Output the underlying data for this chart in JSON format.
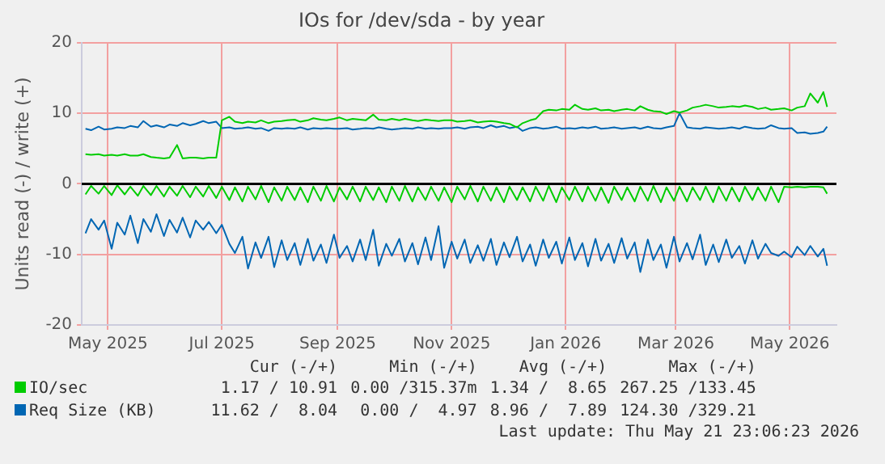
{
  "chart_data": {
    "type": "line",
    "title": "IOs for /dev/sda - by year",
    "ylabel": "Units read (-) / write (+)",
    "x": [
      "2025-04-19",
      "2025-04-22",
      "2025-04-26",
      "2025-04-29",
      "2025-05-03",
      "2025-05-06",
      "2025-05-10",
      "2025-05-13",
      "2025-05-17",
      "2025-05-20",
      "2025-05-24",
      "2025-05-27",
      "2025-05-31",
      "2025-06-03",
      "2025-06-07",
      "2025-06-10",
      "2025-06-14",
      "2025-06-17",
      "2025-06-21",
      "2025-06-24",
      "2025-06-28",
      "2025-07-01",
      "2025-07-05",
      "2025-07-08",
      "2025-07-12",
      "2025-07-15",
      "2025-07-19",
      "2025-07-22",
      "2025-07-26",
      "2025-07-29",
      "2025-08-02",
      "2025-08-05",
      "2025-08-09",
      "2025-08-12",
      "2025-08-16",
      "2025-08-19",
      "2025-08-23",
      "2025-08-26",
      "2025-08-30",
      "2025-09-02",
      "2025-09-06",
      "2025-09-09",
      "2025-09-13",
      "2025-09-16",
      "2025-09-20",
      "2025-09-23",
      "2025-09-27",
      "2025-09-30",
      "2025-10-04",
      "2025-10-07",
      "2025-10-11",
      "2025-10-14",
      "2025-10-18",
      "2025-10-21",
      "2025-10-25",
      "2025-10-28",
      "2025-11-01",
      "2025-11-04",
      "2025-11-08",
      "2025-11-11",
      "2025-11-15",
      "2025-11-18",
      "2025-11-22",
      "2025-11-25",
      "2025-11-29",
      "2025-12-02",
      "2025-12-06",
      "2025-12-09",
      "2025-12-13",
      "2025-12-16",
      "2025-12-20",
      "2025-12-23",
      "2025-12-27",
      "2025-12-30",
      "2026-01-03",
      "2026-01-06",
      "2026-01-10",
      "2026-01-13",
      "2026-01-17",
      "2026-01-20",
      "2026-01-24",
      "2026-01-27",
      "2026-01-31",
      "2026-02-03",
      "2026-02-07",
      "2026-02-10",
      "2026-02-14",
      "2026-02-17",
      "2026-02-21",
      "2026-02-24",
      "2026-02-28",
      "2026-03-03",
      "2026-03-07",
      "2026-03-10",
      "2026-03-14",
      "2026-03-17",
      "2026-03-21",
      "2026-03-24",
      "2026-03-28",
      "2026-03-31",
      "2026-04-04",
      "2026-04-07",
      "2026-04-11",
      "2026-04-14",
      "2026-04-18",
      "2026-04-21",
      "2026-04-25",
      "2026-04-28",
      "2026-05-02",
      "2026-05-05",
      "2026-05-09",
      "2026-05-12",
      "2026-05-16",
      "2026-05-19",
      "2026-05-21"
    ],
    "series": [
      {
        "name": "IO/sec",
        "color": "#00cc00",
        "values": [
          4.2,
          4.1,
          4.2,
          4.0,
          4.1,
          4.0,
          4.2,
          4.0,
          4.0,
          4.2,
          3.8,
          3.7,
          3.6,
          3.7,
          5.5,
          3.6,
          3.7,
          3.7,
          3.6,
          3.7,
          3.7,
          9.0,
          9.5,
          8.8,
          8.6,
          8.8,
          8.7,
          9.0,
          8.6,
          8.8,
          8.9,
          9.0,
          9.1,
          8.8,
          9.0,
          9.3,
          9.1,
          9.0,
          9.2,
          9.4,
          9.0,
          9.2,
          9.1,
          9.0,
          9.8,
          9.1,
          9.0,
          9.2,
          9.0,
          9.2,
          9.0,
          8.9,
          9.1,
          9.0,
          8.9,
          9.0,
          9.0,
          8.8,
          8.9,
          9.0,
          8.7,
          8.8,
          8.9,
          8.8,
          8.6,
          8.5,
          8.0,
          8.6,
          9.0,
          9.2,
          10.3,
          10.5,
          10.4,
          10.6,
          10.5,
          11.2,
          10.6,
          10.5,
          10.7,
          10.4,
          10.5,
          10.3,
          10.5,
          10.6,
          10.4,
          11.0,
          10.5,
          10.3,
          10.2,
          9.9,
          10.3,
          10.1,
          10.4,
          10.8,
          11.0,
          11.2,
          11.0,
          10.8,
          10.9,
          11.0,
          10.9,
          11.1,
          10.9,
          10.6,
          10.8,
          10.5,
          10.6,
          10.7,
          10.4,
          10.8,
          11.0,
          12.8,
          11.5,
          13.0,
          10.9
        ]
      },
      {
        "name": "Req Size (KB)",
        "color": "#0066b3",
        "values": [
          7.8,
          7.6,
          8.1,
          7.7,
          7.8,
          8.0,
          7.9,
          8.2,
          8.0,
          8.9,
          8.1,
          8.3,
          8.0,
          8.4,
          8.2,
          8.6,
          8.3,
          8.5,
          8.9,
          8.6,
          8.8,
          7.9,
          8.0,
          7.8,
          7.9,
          8.0,
          7.8,
          7.9,
          7.5,
          7.9,
          7.8,
          7.9,
          7.8,
          8.0,
          7.7,
          7.9,
          7.8,
          7.9,
          7.8,
          7.8,
          7.9,
          7.7,
          7.8,
          7.9,
          7.8,
          8.0,
          7.8,
          7.7,
          7.8,
          7.9,
          7.8,
          8.0,
          7.8,
          7.9,
          7.8,
          7.9,
          7.9,
          8.0,
          7.8,
          8.0,
          8.1,
          7.9,
          8.3,
          8.0,
          8.2,
          7.9,
          8.1,
          7.5,
          7.9,
          8.0,
          7.8,
          7.9,
          8.1,
          7.8,
          7.9,
          7.8,
          8.0,
          7.9,
          8.1,
          7.8,
          7.9,
          8.0,
          7.8,
          7.9,
          8.0,
          7.8,
          8.1,
          7.9,
          7.8,
          8.0,
          8.2,
          10.0,
          8.0,
          7.9,
          7.8,
          8.0,
          7.9,
          7.8,
          7.9,
          8.0,
          7.8,
          8.1,
          7.9,
          7.8,
          7.9,
          8.3,
          7.9,
          7.8,
          7.9,
          7.2,
          7.3,
          7.1,
          7.2,
          7.4,
          8.1
        ]
      },
      {
        "color": "#00cc00",
        "values": [
          -1.5,
          -0.3,
          -1.4,
          -0.3,
          -1.6,
          -0.2,
          -1.5,
          -0.4,
          -1.7,
          -0.3,
          -1.6,
          -0.3,
          -1.8,
          -0.4,
          -1.7,
          -0.3,
          -1.9,
          -0.4,
          -1.8,
          -0.3,
          -2.0,
          -0.4,
          -2.3,
          -0.5,
          -2.5,
          -0.4,
          -2.2,
          -0.3,
          -2.6,
          -0.5,
          -2.4,
          -0.4,
          -2.3,
          -0.5,
          -2.6,
          -0.4,
          -2.4,
          -0.3,
          -2.5,
          -0.5,
          -2.2,
          -0.4,
          -2.5,
          -0.4,
          -2.3,
          -0.5,
          -2.6,
          -0.4,
          -2.4,
          -0.3,
          -2.5,
          -0.5,
          -2.3,
          -0.4,
          -2.4,
          -0.5,
          -2.6,
          -0.4,
          -2.2,
          -0.3,
          -2.5,
          -0.4,
          -2.4,
          -0.5,
          -2.6,
          -0.4,
          -2.3,
          -0.5,
          -2.5,
          -0.4,
          -2.4,
          -0.3,
          -2.6,
          -0.5,
          -2.3,
          -0.4,
          -2.5,
          -0.4,
          -2.4,
          -0.5,
          -2.7,
          -0.4,
          -2.3,
          -0.5,
          -2.5,
          -0.4,
          -2.4,
          -0.3,
          -2.6,
          -0.5,
          -2.4,
          -0.4,
          -2.5,
          -0.5,
          -2.3,
          -0.4,
          -2.6,
          -0.4,
          -2.4,
          -0.5,
          -2.5,
          -0.4,
          -2.3,
          -0.5,
          -2.4,
          -0.4,
          -2.6,
          -0.4,
          -0.5,
          -0.4,
          -0.5,
          -0.4,
          -0.4,
          -0.5,
          -1.4
        ]
      },
      {
        "color": "#0066b3",
        "values": [
          -7.0,
          -5.0,
          -6.5,
          -5.2,
          -9.2,
          -5.5,
          -7.2,
          -4.5,
          -8.4,
          -5.0,
          -6.8,
          -4.3,
          -7.4,
          -5.1,
          -6.9,
          -4.8,
          -7.6,
          -5.2,
          -6.5,
          -5.4,
          -7.0,
          -5.8,
          -8.5,
          -9.8,
          -7.5,
          -12.0,
          -8.3,
          -10.5,
          -7.5,
          -11.8,
          -8.0,
          -10.8,
          -8.4,
          -11.5,
          -7.8,
          -10.9,
          -8.6,
          -11.2,
          -7.2,
          -10.5,
          -8.8,
          -11.0,
          -7.9,
          -10.8,
          -6.5,
          -11.6,
          -8.5,
          -10.2,
          -7.8,
          -11.0,
          -8.4,
          -11.4,
          -7.6,
          -10.8,
          -6.0,
          -11.9,
          -8.2,
          -10.6,
          -7.9,
          -11.2,
          -8.7,
          -10.9,
          -7.8,
          -11.5,
          -8.3,
          -10.4,
          -7.5,
          -11.0,
          -8.6,
          -11.6,
          -7.9,
          -10.5,
          -8.2,
          -11.3,
          -7.6,
          -10.8,
          -8.4,
          -11.7,
          -7.8,
          -10.9,
          -8.5,
          -11.2,
          -7.7,
          -10.6,
          -8.3,
          -12.5,
          -7.9,
          -10.8,
          -8.6,
          -11.9,
          -7.5,
          -11.0,
          -8.4,
          -10.7,
          -7.2,
          -11.5,
          -8.6,
          -11.1,
          -7.9,
          -10.5,
          -8.8,
          -11.3,
          -8.0,
          -10.6,
          -8.5,
          -9.8,
          -10.2,
          -9.6,
          -10.4,
          -8.9,
          -10.1,
          -8.8,
          -10.3,
          -9.2,
          -11.6
        ]
      }
    ],
    "xlim": [
      "2025-04-17",
      "2026-05-26"
    ],
    "xticks": [
      {
        "value": "2025-05-01",
        "label": "May 2025"
      },
      {
        "value": "2025-07-01",
        "label": "Jul 2025"
      },
      {
        "value": "2025-09-01",
        "label": "Sep 2025"
      },
      {
        "value": "2025-11-01",
        "label": "Nov 2025"
      },
      {
        "value": "2026-01-01",
        "label": "Jan 2026"
      },
      {
        "value": "2026-03-01",
        "label": "Mar 2026"
      },
      {
        "value": "2026-05-01",
        "label": "May 2026"
      }
    ],
    "ylim": [
      -20,
      20
    ],
    "yticks": [
      -20,
      -10,
      0,
      10,
      20
    ],
    "ref_lines": [
      {
        "axis": "y",
        "value": 0,
        "color": "#000000"
      }
    ],
    "grid": true,
    "marker": "none",
    "line_style": "solid",
    "legend": "bottom",
    "annotations": [
      "Cur (-/+)",
      "Min (-/+)",
      "Avg (-/+)",
      "Max (-/+)",
      "1.17 / 10.91",
      "0.00 /315.37m",
      "1.34 /  8.65",
      "267.25 /133.45",
      "11.62 /  8.04",
      "0.00 /  4.97",
      "8.96 /  7.89",
      "124.30 /329.21",
      "Last update: Thu May 21 23:06:23 2026"
    ]
  }
}
